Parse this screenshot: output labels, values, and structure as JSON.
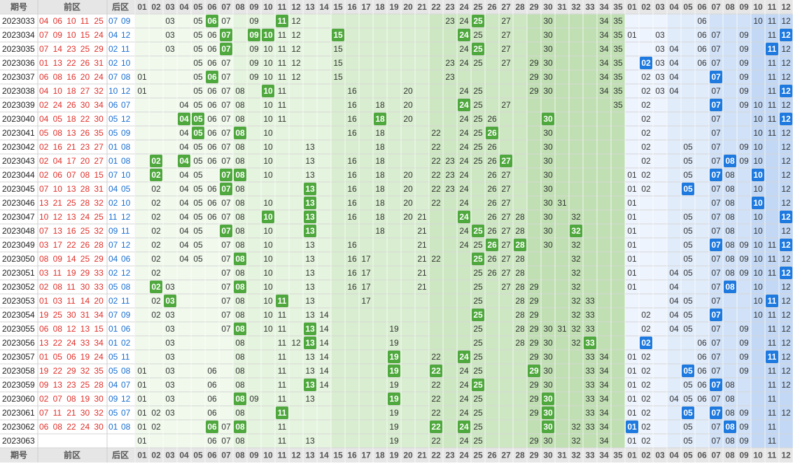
{
  "header": {
    "period": "期号",
    "front": "前区",
    "back": "后区",
    "front_numbers": [
      "01",
      "02",
      "03",
      "04",
      "05",
      "06",
      "07",
      "08",
      "09",
      "10",
      "11",
      "12",
      "13",
      "14",
      "15",
      "16",
      "17",
      "18",
      "19",
      "20",
      "21",
      "22",
      "23",
      "24",
      "25",
      "26",
      "27",
      "28",
      "29",
      "30",
      "31",
      "32",
      "33",
      "34",
      "35"
    ],
    "back_numbers": [
      "01",
      "02",
      "03",
      "04",
      "05",
      "06",
      "07",
      "08",
      "09",
      "10",
      "11",
      "12"
    ]
  },
  "rows": [
    {
      "period": "2023033",
      "front": [
        "04",
        "06",
        "10",
        "11",
        "25"
      ],
      "back": [
        "07",
        "09"
      ],
      "front_grid": [
        "03",
        "05",
        "06",
        "07",
        "09",
        "11",
        "12",
        "23",
        "24",
        "25",
        "27",
        "30",
        "34",
        "35"
      ],
      "back_grid": [
        "06",
        "10",
        "11",
        "12"
      ]
    },
    {
      "period": "2023034",
      "front": [
        "07",
        "09",
        "10",
        "15",
        "24"
      ],
      "back": [
        "04",
        "12"
      ],
      "front_grid": [
        "03",
        "05",
        "06",
        "07",
        "09",
        "10",
        "11",
        "12",
        "15",
        "24",
        "25",
        "27",
        "30",
        "34",
        "35"
      ],
      "back_grid": [
        "01",
        "03",
        "06",
        "07",
        "09",
        "11",
        "12"
      ]
    },
    {
      "period": "2023035",
      "front": [
        "07",
        "14",
        "23",
        "25",
        "29"
      ],
      "back": [
        "02",
        "11"
      ],
      "front_grid": [
        "03",
        "05",
        "06",
        "07",
        "09",
        "10",
        "11",
        "12",
        "15",
        "24",
        "25",
        "27",
        "30",
        "34",
        "35"
      ],
      "back_grid": [
        "03",
        "04",
        "06",
        "07",
        "09",
        "11",
        "12"
      ]
    },
    {
      "period": "2023036",
      "front": [
        "01",
        "13",
        "22",
        "26",
        "31"
      ],
      "back": [
        "02",
        "10"
      ],
      "front_grid": [
        "05",
        "06",
        "07",
        "09",
        "10",
        "11",
        "12",
        "15",
        "23",
        "24",
        "25",
        "27",
        "29",
        "30",
        "34",
        "35"
      ],
      "back_grid": [
        "02",
        "03",
        "04",
        "06",
        "07",
        "09",
        "11",
        "12"
      ]
    },
    {
      "period": "2023037",
      "front": [
        "06",
        "08",
        "16",
        "20",
        "24"
      ],
      "back": [
        "07",
        "08"
      ],
      "front_grid": [
        "01",
        "05",
        "06",
        "07",
        "09",
        "10",
        "11",
        "12",
        "15",
        "23",
        "29",
        "30",
        "34",
        "35"
      ],
      "back_grid": [
        "02",
        "03",
        "04",
        "07",
        "09",
        "11",
        "12"
      ]
    },
    {
      "period": "2023038",
      "front": [
        "04",
        "10",
        "18",
        "27",
        "32"
      ],
      "back": [
        "10",
        "12"
      ],
      "front_grid": [
        "01",
        "05",
        "06",
        "07",
        "08",
        "10",
        "11",
        "16",
        "20",
        "24",
        "25",
        "29",
        "30",
        "34",
        "35"
      ],
      "back_grid": [
        "02",
        "03",
        "04",
        "07",
        "09",
        "11",
        "12"
      ]
    },
    {
      "period": "2023039",
      "front": [
        "02",
        "24",
        "26",
        "30",
        "34"
      ],
      "back": [
        "06",
        "07"
      ],
      "front_grid": [
        "04",
        "05",
        "06",
        "07",
        "08",
        "10",
        "11",
        "16",
        "18",
        "20",
        "24",
        "25",
        "27",
        "35"
      ],
      "back_grid": [
        "02",
        "07",
        "09",
        "10",
        "11",
        "12"
      ]
    },
    {
      "period": "2023040",
      "front": [
        "04",
        "05",
        "18",
        "22",
        "30"
      ],
      "back": [
        "05",
        "12"
      ],
      "front_grid": [
        "04",
        "05",
        "06",
        "07",
        "08",
        "10",
        "11",
        "16",
        "18",
        "20",
        "24",
        "25",
        "26",
        "30"
      ],
      "back_grid": [
        "02",
        "07",
        "10",
        "11",
        "12"
      ]
    },
    {
      "period": "2023041",
      "front": [
        "05",
        "08",
        "13",
        "26",
        "35"
      ],
      "back": [
        "05",
        "09"
      ],
      "front_grid": [
        "04",
        "05",
        "06",
        "07",
        "08",
        "10",
        "16",
        "18",
        "22",
        "24",
        "25",
        "26",
        "30"
      ],
      "back_grid": [
        "02",
        "07",
        "10",
        "11",
        "12"
      ]
    },
    {
      "period": "2023042",
      "front": [
        "02",
        "16",
        "21",
        "23",
        "27"
      ],
      "back": [
        "01",
        "08"
      ],
      "front_grid": [
        "04",
        "05",
        "06",
        "07",
        "08",
        "10",
        "13",
        "18",
        "22",
        "24",
        "25",
        "26",
        "30"
      ],
      "back_grid": [
        "02",
        "05",
        "07",
        "09",
        "10",
        "12"
      ]
    },
    {
      "period": "2023043",
      "front": [
        "02",
        "04",
        "17",
        "20",
        "27"
      ],
      "back": [
        "01",
        "08"
      ],
      "front_grid": [
        "02",
        "04",
        "05",
        "06",
        "07",
        "08",
        "10",
        "13",
        "16",
        "18",
        "22",
        "23",
        "24",
        "25",
        "26",
        "27",
        "30"
      ],
      "back_grid": [
        "02",
        "05",
        "07",
        "08",
        "09",
        "10",
        "12"
      ]
    },
    {
      "period": "2023044",
      "front": [
        "02",
        "06",
        "07",
        "08",
        "15"
      ],
      "back": [
        "07",
        "10"
      ],
      "front_grid": [
        "02",
        "04",
        "05",
        "07",
        "08",
        "10",
        "13",
        "16",
        "18",
        "20",
        "22",
        "23",
        "24",
        "26",
        "27",
        "30"
      ],
      "back_grid": [
        "01",
        "02",
        "05",
        "07",
        "08",
        "10",
        "12"
      ]
    },
    {
      "period": "2023045",
      "front": [
        "07",
        "10",
        "13",
        "28",
        "31"
      ],
      "back": [
        "04",
        "05"
      ],
      "front_grid": [
        "02",
        "04",
        "05",
        "06",
        "07",
        "08",
        "13",
        "16",
        "18",
        "20",
        "22",
        "23",
        "24",
        "26",
        "27",
        "30"
      ],
      "back_grid": [
        "01",
        "02",
        "05",
        "07",
        "08",
        "10",
        "12"
      ]
    },
    {
      "period": "2023046",
      "front": [
        "13",
        "21",
        "25",
        "28",
        "32"
      ],
      "back": [
        "02",
        "10"
      ],
      "front_grid": [
        "02",
        "04",
        "05",
        "06",
        "07",
        "08",
        "10",
        "13",
        "16",
        "18",
        "20",
        "22",
        "24",
        "26",
        "27",
        "30",
        "31"
      ],
      "back_grid": [
        "01",
        "07",
        "08",
        "10",
        "12"
      ]
    },
    {
      "period": "2023047",
      "front": [
        "10",
        "12",
        "13",
        "24",
        "25"
      ],
      "back": [
        "11",
        "12"
      ],
      "front_grid": [
        "02",
        "04",
        "05",
        "06",
        "07",
        "08",
        "10",
        "13",
        "16",
        "18",
        "20",
        "21",
        "24",
        "26",
        "27",
        "28",
        "30",
        "32"
      ],
      "back_grid": [
        "01",
        "05",
        "07",
        "08",
        "10",
        "12"
      ]
    },
    {
      "period": "2023048",
      "front": [
        "07",
        "13",
        "16",
        "25",
        "32"
      ],
      "back": [
        "09",
        "11"
      ],
      "front_grid": [
        "02",
        "04",
        "05",
        "07",
        "08",
        "10",
        "13",
        "18",
        "21",
        "24",
        "25",
        "26",
        "27",
        "28",
        "30",
        "32"
      ],
      "back_grid": [
        "01",
        "05",
        "07",
        "08",
        "10",
        "12"
      ]
    },
    {
      "period": "2023049",
      "front": [
        "03",
        "17",
        "22",
        "26",
        "28"
      ],
      "back": [
        "07",
        "12"
      ],
      "front_grid": [
        "02",
        "04",
        "05",
        "07",
        "08",
        "10",
        "13",
        "16",
        "21",
        "24",
        "25",
        "26",
        "27",
        "28",
        "30",
        "32"
      ],
      "back_grid": [
        "01",
        "05",
        "07",
        "08",
        "09",
        "10",
        "11",
        "12"
      ]
    },
    {
      "period": "2023050",
      "front": [
        "08",
        "09",
        "14",
        "25",
        "29"
      ],
      "back": [
        "04",
        "06"
      ],
      "front_grid": [
        "02",
        "04",
        "05",
        "07",
        "08",
        "10",
        "13",
        "16",
        "17",
        "21",
        "22",
        "25",
        "26",
        "27",
        "28",
        "32"
      ],
      "back_grid": [
        "01",
        "05",
        "07",
        "08",
        "09",
        "10",
        "11",
        "12"
      ]
    },
    {
      "period": "2023051",
      "front": [
        "03",
        "11",
        "19",
        "29",
        "33"
      ],
      "back": [
        "02",
        "12"
      ],
      "front_grid": [
        "02",
        "07",
        "08",
        "10",
        "13",
        "16",
        "17",
        "21",
        "25",
        "26",
        "27",
        "28",
        "32"
      ],
      "back_grid": [
        "01",
        "04",
        "05",
        "07",
        "08",
        "09",
        "10",
        "11",
        "12"
      ]
    },
    {
      "period": "2023052",
      "front": [
        "02",
        "08",
        "11",
        "30",
        "33"
      ],
      "back": [
        "05",
        "08"
      ],
      "front_grid": [
        "02",
        "03",
        "07",
        "08",
        "10",
        "13",
        "16",
        "17",
        "21",
        "25",
        "27",
        "28",
        "29",
        "32"
      ],
      "back_grid": [
        "01",
        "04",
        "07",
        "08",
        "10",
        "12"
      ]
    },
    {
      "period": "2023053",
      "front": [
        "01",
        "03",
        "11",
        "14",
        "20"
      ],
      "back": [
        "02",
        "11"
      ],
      "front_grid": [
        "02",
        "03",
        "07",
        "08",
        "10",
        "11",
        "13",
        "17",
        "25",
        "28",
        "29",
        "32",
        "33"
      ],
      "back_grid": [
        "04",
        "05",
        "07",
        "10",
        "11",
        "12"
      ]
    },
    {
      "period": "2023054",
      "front": [
        "19",
        "25",
        "30",
        "31",
        "34"
      ],
      "back": [
        "07",
        "09"
      ],
      "front_grid": [
        "02",
        "03",
        "07",
        "08",
        "10",
        "11",
        "13",
        "14",
        "25",
        "28",
        "29",
        "32",
        "33"
      ],
      "back_grid": [
        "02",
        "04",
        "05",
        "07",
        "10",
        "11",
        "12"
      ]
    },
    {
      "period": "2023055",
      "front": [
        "06",
        "08",
        "12",
        "13",
        "15"
      ],
      "back": [
        "01",
        "06"
      ],
      "front_grid": [
        "03",
        "07",
        "08",
        "10",
        "11",
        "13",
        "14",
        "19",
        "25",
        "28",
        "29",
        "30",
        "31",
        "32",
        "33"
      ],
      "back_grid": [
        "02",
        "04",
        "05",
        "07",
        "09",
        "11",
        "12"
      ]
    },
    {
      "period": "2023056",
      "front": [
        "13",
        "22",
        "24",
        "33",
        "34"
      ],
      "back": [
        "01",
        "02"
      ],
      "front_grid": [
        "03",
        "08",
        "11",
        "12",
        "13",
        "14",
        "19",
        "25",
        "28",
        "29",
        "30",
        "32",
        "33"
      ],
      "back_grid": [
        "02",
        "06",
        "07",
        "09",
        "11",
        "12"
      ]
    },
    {
      "period": "2023057",
      "front": [
        "01",
        "05",
        "06",
        "19",
        "24"
      ],
      "back": [
        "05",
        "11"
      ],
      "front_grid": [
        "03",
        "08",
        "11",
        "13",
        "14",
        "19",
        "22",
        "24",
        "25",
        "29",
        "30",
        "33",
        "34"
      ],
      "back_grid": [
        "01",
        "02",
        "06",
        "07",
        "09",
        "11",
        "12"
      ]
    },
    {
      "period": "2023058",
      "front": [
        "19",
        "22",
        "29",
        "32",
        "35"
      ],
      "back": [
        "05",
        "08"
      ],
      "front_grid": [
        "01",
        "03",
        "06",
        "08",
        "11",
        "13",
        "14",
        "19",
        "22",
        "24",
        "25",
        "29",
        "30",
        "33",
        "34"
      ],
      "back_grid": [
        "01",
        "02",
        "05",
        "06",
        "07",
        "09",
        "11",
        "12"
      ]
    },
    {
      "period": "2023059",
      "front": [
        "09",
        "13",
        "23",
        "25",
        "28"
      ],
      "back": [
        "04",
        "07"
      ],
      "front_grid": [
        "01",
        "03",
        "06",
        "08",
        "11",
        "13",
        "14",
        "19",
        "22",
        "24",
        "25",
        "29",
        "30",
        "33",
        "34"
      ],
      "back_grid": [
        "01",
        "02",
        "05",
        "06",
        "07",
        "08",
        "11",
        "12"
      ]
    },
    {
      "period": "2023060",
      "front": [
        "02",
        "07",
        "08",
        "19",
        "30"
      ],
      "back": [
        "09",
        "12"
      ],
      "front_grid": [
        "01",
        "03",
        "06",
        "08",
        "09",
        "11",
        "13",
        "19",
        "22",
        "24",
        "25",
        "29",
        "30",
        "33",
        "34"
      ],
      "back_grid": [
        "01",
        "02",
        "04",
        "05",
        "06",
        "07",
        "08",
        "11"
      ]
    },
    {
      "period": "2023061",
      "front": [
        "07",
        "11",
        "21",
        "30",
        "32"
      ],
      "back": [
        "05",
        "07"
      ],
      "front_grid": [
        "01",
        "02",
        "03",
        "06",
        "08",
        "11",
        "19",
        "22",
        "24",
        "25",
        "29",
        "30",
        "33",
        "34"
      ],
      "back_grid": [
        "01",
        "02",
        "05",
        "07",
        "08",
        "09",
        "11",
        "12"
      ]
    },
    {
      "period": "2023062",
      "front": [
        "06",
        "08",
        "22",
        "24",
        "30"
      ],
      "back": [
        "01",
        "08"
      ],
      "front_grid": [
        "01",
        "02",
        "06",
        "07",
        "08",
        "11",
        "19",
        "22",
        "24",
        "25",
        "30",
        "32",
        "33",
        "34"
      ],
      "back_grid": [
        "01",
        "02",
        "05",
        "07",
        "08",
        "09",
        "11"
      ]
    },
    {
      "period": "2023063",
      "front": [],
      "back": [],
      "front_grid": [
        "01",
        "06",
        "07",
        "08",
        "11",
        "13",
        "19",
        "22",
        "24",
        "25",
        "29",
        "30",
        "32",
        "34"
      ],
      "back_grid": [
        "01",
        "02",
        "05",
        "07",
        "08",
        "09",
        "11"
      ]
    }
  ]
}
